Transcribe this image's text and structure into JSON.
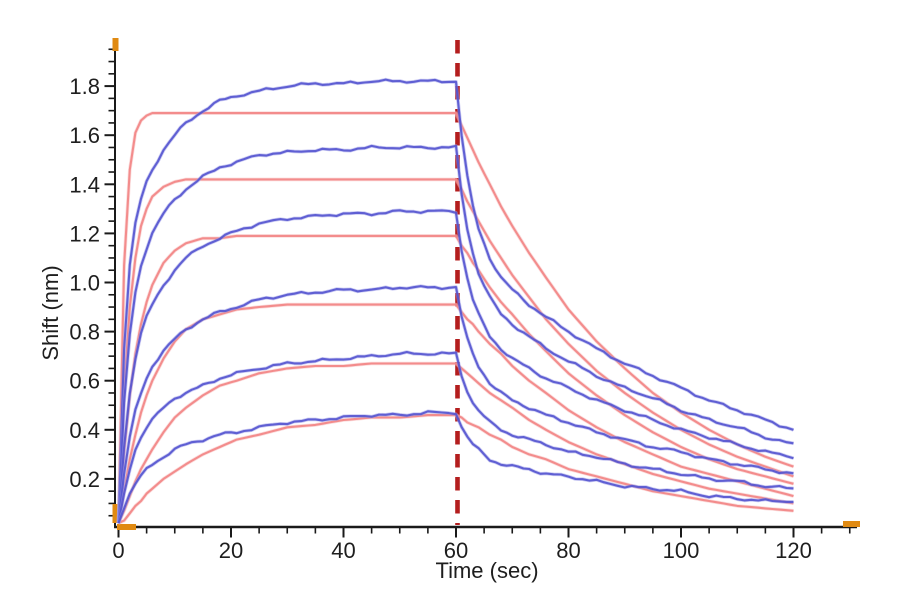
{
  "chart_data": {
    "type": "line",
    "title": "",
    "xlabel": "Time (sec)",
    "ylabel": "Shift (nm)",
    "xlim": [
      0,
      131
    ],
    "ylim": [
      0,
      1.96
    ],
    "grid": false,
    "legend": "none",
    "x_major_ticks": [
      0,
      20,
      40,
      60,
      80,
      100,
      120
    ],
    "x_tick_labels": [
      "0",
      "20",
      "40",
      "60",
      "80",
      "100",
      "120"
    ],
    "x_minor_step": 5,
    "x_minor_max": 130,
    "y_major_ticks": [
      0.2,
      0.4,
      0.6,
      0.8,
      1.0,
      1.2,
      1.4,
      1.6,
      1.8
    ],
    "y_tick_labels": [
      "0.2",
      "0.4",
      "0.6",
      "0.8",
      "1.0",
      "1.2",
      "1.4",
      "1.6",
      "1.8"
    ],
    "y_minor_step": 0.05,
    "colors": {
      "axis": "#1a1a1a",
      "measured": "#5353cf",
      "measured_halo": "#9a9ae8",
      "fit": "#f28787",
      "fit_halo": "#f8bcbc",
      "boundary": "#b41e1e",
      "range_marker": "#e08a12"
    },
    "annotations": [
      {
        "type": "vline",
        "x": 60,
        "style": "dashed",
        "color": "#b41e1e"
      }
    ],
    "x": [
      0,
      1,
      2,
      3,
      4,
      5,
      6,
      8,
      10,
      12,
      15,
      18,
      21,
      25,
      30,
      35,
      40,
      45,
      50,
      55,
      60,
      61,
      62,
      63,
      64,
      66,
      68,
      70,
      73,
      76,
      80,
      85,
      90,
      95,
      100,
      105,
      110,
      115,
      120
    ],
    "series": [
      {
        "name": "fit-1",
        "role": "fit",
        "color": "#f28787",
        "noise": false,
        "y": [
          0.02,
          1.07,
          1.46,
          1.61,
          1.66,
          1.68,
          1.69,
          1.69,
          1.69,
          1.69,
          1.69,
          1.69,
          1.69,
          1.69,
          1.69,
          1.69,
          1.69,
          1.69,
          1.69,
          1.69,
          1.69,
          1.64,
          1.59,
          1.54,
          1.49,
          1.4,
          1.31,
          1.23,
          1.12,
          1.02,
          0.89,
          0.76,
          0.65,
          0.55,
          0.47,
          0.4,
          0.34,
          0.29,
          0.25
        ]
      },
      {
        "name": "fit-2",
        "role": "fit",
        "color": "#f28787",
        "noise": false,
        "y": [
          0.02,
          0.56,
          0.9,
          1.1,
          1.23,
          1.3,
          1.35,
          1.39,
          1.41,
          1.42,
          1.42,
          1.42,
          1.42,
          1.42,
          1.42,
          1.42,
          1.42,
          1.42,
          1.42,
          1.42,
          1.42,
          1.38,
          1.33,
          1.29,
          1.25,
          1.17,
          1.1,
          1.03,
          0.94,
          0.85,
          0.75,
          0.64,
          0.55,
          0.47,
          0.4,
          0.34,
          0.29,
          0.25,
          0.21
        ]
      },
      {
        "name": "fit-3",
        "role": "fit",
        "color": "#f28787",
        "noise": false,
        "y": [
          0.02,
          0.31,
          0.54,
          0.71,
          0.83,
          0.92,
          0.99,
          1.08,
          1.13,
          1.16,
          1.18,
          1.18,
          1.19,
          1.19,
          1.19,
          1.19,
          1.19,
          1.19,
          1.19,
          1.19,
          1.19,
          1.15,
          1.12,
          1.08,
          1.05,
          0.98,
          0.92,
          0.87,
          0.79,
          0.72,
          0.63,
          0.54,
          0.46,
          0.39,
          0.33,
          0.28,
          0.24,
          0.21,
          0.18
        ]
      },
      {
        "name": "fit-4",
        "role": "fit",
        "color": "#f28787",
        "noise": false,
        "y": [
          0.02,
          0.15,
          0.28,
          0.38,
          0.47,
          0.54,
          0.6,
          0.69,
          0.76,
          0.81,
          0.85,
          0.87,
          0.89,
          0.9,
          0.91,
          0.91,
          0.91,
          0.91,
          0.91,
          0.91,
          0.91,
          0.88,
          0.85,
          0.83,
          0.8,
          0.75,
          0.71,
          0.66,
          0.6,
          0.55,
          0.48,
          0.41,
          0.35,
          0.3,
          0.25,
          0.22,
          0.19,
          0.16,
          0.13
        ]
      },
      {
        "name": "fit-5",
        "role": "fit",
        "color": "#f28787",
        "noise": false,
        "y": [
          0.02,
          0.07,
          0.13,
          0.19,
          0.24,
          0.28,
          0.32,
          0.39,
          0.45,
          0.49,
          0.54,
          0.58,
          0.6,
          0.63,
          0.65,
          0.66,
          0.66,
          0.67,
          0.67,
          0.67,
          0.67,
          0.65,
          0.63,
          0.61,
          0.59,
          0.55,
          0.52,
          0.49,
          0.44,
          0.4,
          0.35,
          0.3,
          0.26,
          0.22,
          0.19,
          0.16,
          0.14,
          0.12,
          0.1
        ]
      },
      {
        "name": "fit-6",
        "role": "fit",
        "color": "#f28787",
        "noise": false,
        "y": [
          0.02,
          0.03,
          0.06,
          0.09,
          0.11,
          0.14,
          0.16,
          0.2,
          0.23,
          0.26,
          0.3,
          0.33,
          0.36,
          0.38,
          0.41,
          0.42,
          0.44,
          0.45,
          0.45,
          0.46,
          0.46,
          0.45,
          0.43,
          0.42,
          0.41,
          0.38,
          0.36,
          0.33,
          0.3,
          0.28,
          0.24,
          0.21,
          0.18,
          0.15,
          0.13,
          0.11,
          0.09,
          0.08,
          0.07
        ]
      },
      {
        "name": "data-1",
        "role": "measured",
        "color": "#5353cf",
        "noise": true,
        "y": [
          0.02,
          0.73,
          1.07,
          1.24,
          1.34,
          1.41,
          1.46,
          1.54,
          1.6,
          1.65,
          1.7,
          1.74,
          1.76,
          1.78,
          1.8,
          1.81,
          1.81,
          1.82,
          1.82,
          1.82,
          1.82,
          1.6,
          1.43,
          1.31,
          1.22,
          1.1,
          1.02,
          0.97,
          0.91,
          0.86,
          0.8,
          0.73,
          0.67,
          0.62,
          0.57,
          0.52,
          0.48,
          0.44,
          0.4
        ]
      },
      {
        "name": "data-2",
        "role": "measured",
        "color": "#5353cf",
        "noise": true,
        "y": [
          0.02,
          0.51,
          0.79,
          0.96,
          1.07,
          1.14,
          1.2,
          1.28,
          1.34,
          1.38,
          1.43,
          1.47,
          1.49,
          1.52,
          1.53,
          1.54,
          1.54,
          1.55,
          1.55,
          1.55,
          1.55,
          1.36,
          1.22,
          1.12,
          1.04,
          0.94,
          0.87,
          0.83,
          0.78,
          0.73,
          0.68,
          0.62,
          0.57,
          0.53,
          0.48,
          0.44,
          0.41,
          0.37,
          0.34
        ]
      },
      {
        "name": "data-3",
        "role": "measured",
        "color": "#5353cf",
        "noise": true,
        "y": [
          0.02,
          0.33,
          0.55,
          0.69,
          0.79,
          0.86,
          0.91,
          0.99,
          1.05,
          1.1,
          1.15,
          1.18,
          1.21,
          1.24,
          1.26,
          1.27,
          1.28,
          1.28,
          1.29,
          1.29,
          1.29,
          1.13,
          1.02,
          0.93,
          0.87,
          0.78,
          0.73,
          0.69,
          0.65,
          0.61,
          0.57,
          0.52,
          0.48,
          0.44,
          0.4,
          0.37,
          0.34,
          0.31,
          0.29
        ]
      },
      {
        "name": "data-4",
        "role": "measured",
        "color": "#5353cf",
        "noise": true,
        "y": [
          0.02,
          0.22,
          0.37,
          0.48,
          0.55,
          0.61,
          0.66,
          0.72,
          0.77,
          0.81,
          0.85,
          0.88,
          0.9,
          0.93,
          0.95,
          0.96,
          0.97,
          0.97,
          0.98,
          0.98,
          0.98,
          0.86,
          0.77,
          0.71,
          0.66,
          0.59,
          0.55,
          0.52,
          0.49,
          0.46,
          0.43,
          0.39,
          0.36,
          0.33,
          0.31,
          0.28,
          0.26,
          0.24,
          0.22
        ]
      },
      {
        "name": "data-5",
        "role": "measured",
        "color": "#5353cf",
        "noise": true,
        "y": [
          0.02,
          0.14,
          0.24,
          0.32,
          0.37,
          0.41,
          0.44,
          0.49,
          0.53,
          0.55,
          0.58,
          0.61,
          0.63,
          0.65,
          0.67,
          0.68,
          0.69,
          0.7,
          0.71,
          0.71,
          0.71,
          0.62,
          0.56,
          0.51,
          0.48,
          0.43,
          0.4,
          0.38,
          0.36,
          0.34,
          0.31,
          0.29,
          0.26,
          0.24,
          0.22,
          0.2,
          0.19,
          0.17,
          0.16
        ]
      },
      {
        "name": "data-6",
        "role": "measured",
        "color": "#5353cf",
        "noise": true,
        "y": [
          0.02,
          0.08,
          0.14,
          0.18,
          0.21,
          0.24,
          0.26,
          0.29,
          0.32,
          0.34,
          0.36,
          0.38,
          0.39,
          0.41,
          0.43,
          0.44,
          0.45,
          0.46,
          0.46,
          0.47,
          0.47,
          0.41,
          0.37,
          0.34,
          0.32,
          0.28,
          0.26,
          0.25,
          0.24,
          0.22,
          0.21,
          0.19,
          0.17,
          0.16,
          0.15,
          0.13,
          0.12,
          0.11,
          0.11
        ]
      }
    ]
  }
}
